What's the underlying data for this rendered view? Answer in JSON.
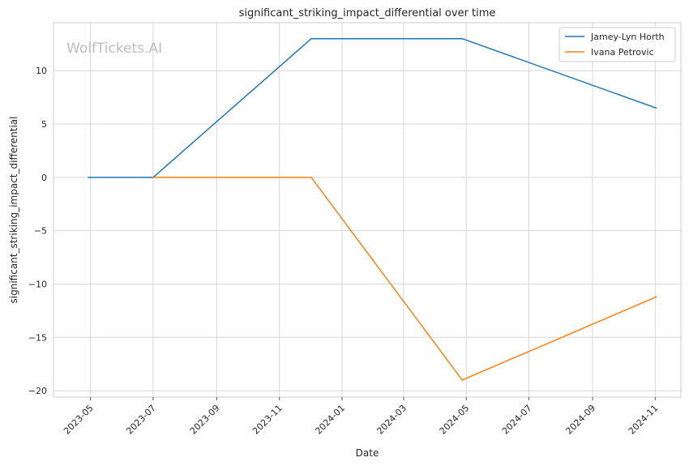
{
  "chart_data": {
    "type": "line",
    "title": "significant_striking_impact_differential over time",
    "xlabel": "Date",
    "ylabel": "significant_striking_impact_differential",
    "watermark": "WolfTickets.AI",
    "x_ticks": [
      "2023-05",
      "2023-07",
      "2023-09",
      "2023-11",
      "2024-01",
      "2024-03",
      "2024-05",
      "2024-07",
      "2024-09",
      "2024-11"
    ],
    "y_ticks": [
      10,
      5,
      0,
      -5,
      -10,
      -15,
      -20
    ],
    "xlim": [
      "2023-03-26",
      "2024-11-26"
    ],
    "ylim": [
      -20.6,
      14.5
    ],
    "grid": true,
    "legend_position": "top-right",
    "series": [
      {
        "name": "Jamey-Lyn Horth",
        "color": "#1f77b4",
        "points": [
          {
            "x": "2023-04-29",
            "y": 0
          },
          {
            "x": "2023-07-01",
            "y": 0
          },
          {
            "x": "2023-12-02",
            "y": 13
          },
          {
            "x": "2024-04-27",
            "y": 13
          },
          {
            "x": "2024-11-02",
            "y": 6.5
          }
        ]
      },
      {
        "name": "Ivana Petrovic",
        "color": "#ff7f0e",
        "points": [
          {
            "x": "2023-07-01",
            "y": 0
          },
          {
            "x": "2023-12-02",
            "y": 0
          },
          {
            "x": "2024-04-27",
            "y": -19
          },
          {
            "x": "2024-11-02",
            "y": -11.2
          }
        ]
      }
    ]
  }
}
